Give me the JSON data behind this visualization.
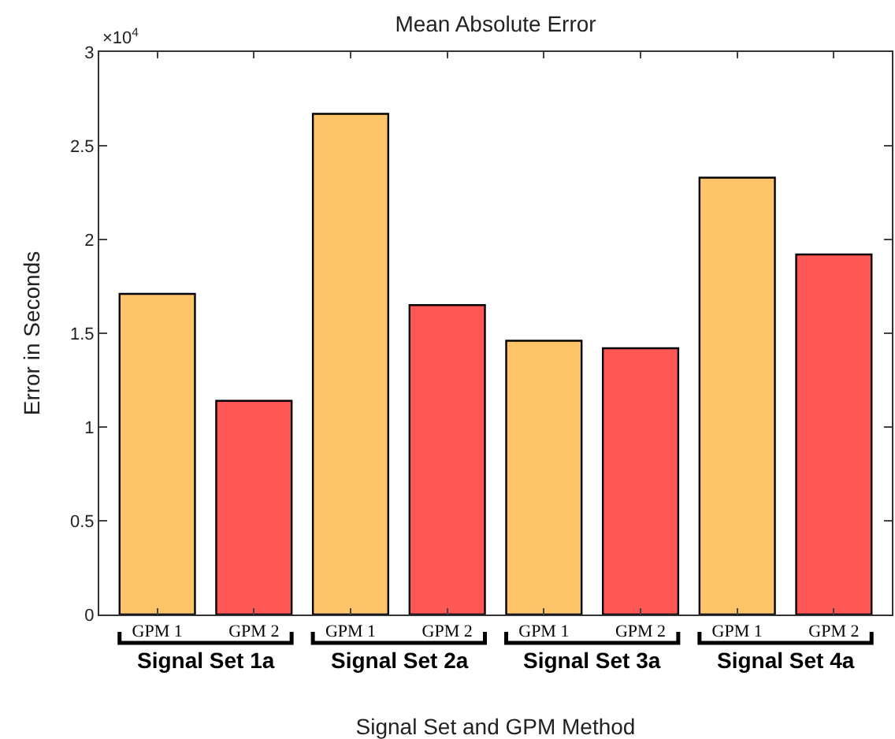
{
  "chart_data": {
    "type": "bar",
    "title": "Mean Absolute Error",
    "xlabel": "Signal Set and GPM Method",
    "ylabel": "Error in Seconds",
    "categories": [
      "GPM 1",
      "GPM 2",
      "GPM 1",
      "GPM 2",
      "GPM 1",
      "GPM 2",
      "GPM 1",
      "GPM 2"
    ],
    "values": [
      1.71,
      1.14,
      2.67,
      1.65,
      1.46,
      1.42,
      2.33,
      1.92
    ],
    "colors": [
      "#fdc46a",
      "#ff5656",
      "#fdc46a",
      "#ff5656",
      "#fdc46a",
      "#ff5656",
      "#fdc46a",
      "#ff5656"
    ],
    "ylim": [
      0,
      3
    ],
    "yticks": [
      0,
      0.5,
      1,
      1.5,
      2,
      2.5,
      3
    ],
    "grid": false,
    "annotations": [
      "×10$^{4}$",
      "Signal Set 1a",
      "Signal Set 2a",
      "Signal Set 3a",
      "Signal Set 4a"
    ]
  }
}
